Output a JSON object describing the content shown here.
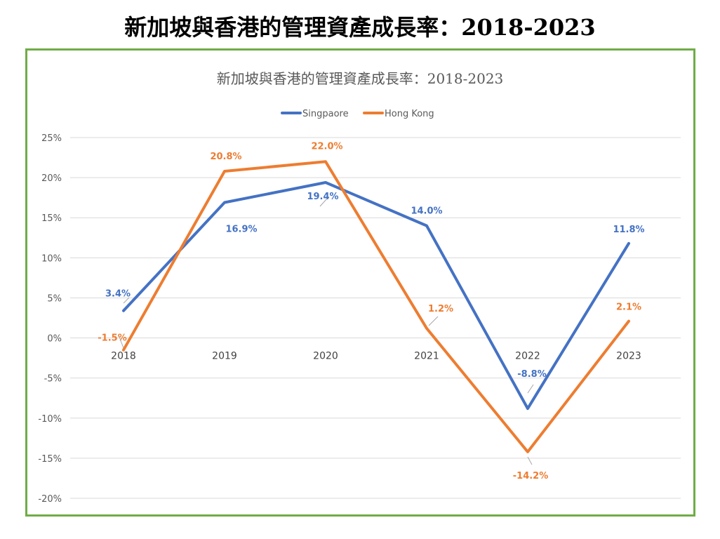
{
  "slide_title": "新加坡與香港的管理資產成長率：2018-2023",
  "chart_data": {
    "type": "line",
    "title": "新加坡與香港的管理資產成長率：2018-2023",
    "categories": [
      "2018",
      "2019",
      "2020",
      "2021",
      "2022",
      "2023"
    ],
    "series": [
      {
        "name": "Singpaore",
        "color": "#4472c4",
        "values": [
          3.4,
          16.9,
          19.4,
          14.0,
          -8.8,
          11.8
        ],
        "labels": [
          "3.4%",
          "16.9%",
          "19.4%",
          "14.0%",
          "-8.8%",
          "11.8%"
        ]
      },
      {
        "name": "Hong Kong",
        "color": "#ed7d31",
        "values": [
          -1.5,
          20.8,
          22.0,
          1.2,
          -14.2,
          2.1
        ],
        "labels": [
          "-1.5%",
          "20.8%",
          "22.0%",
          "1.2%",
          "-14.2%",
          "2.1%"
        ]
      }
    ],
    "y_ticks": [
      "25%",
      "20%",
      "15%",
      "10%",
      "5%",
      "0%",
      "-5%",
      "-10%",
      "-15%",
      "-20%"
    ],
    "ylim": [
      -20,
      25
    ],
    "grid": true,
    "legend": "top-center",
    "xlabel": "",
    "ylabel": ""
  }
}
